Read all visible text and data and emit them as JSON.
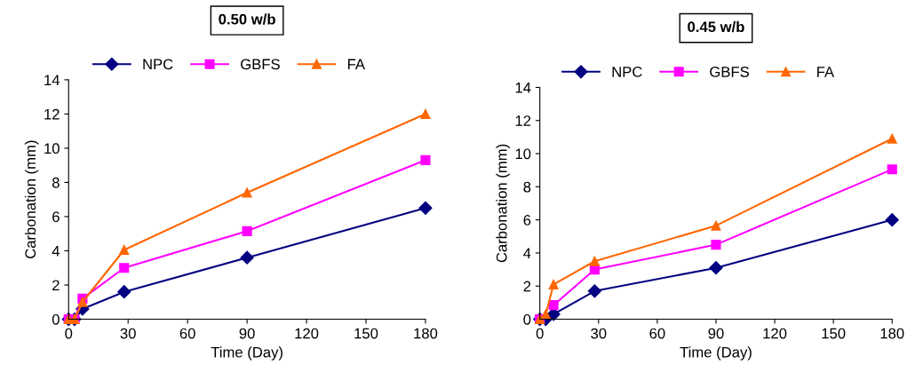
{
  "chart_data": [
    {
      "type": "line",
      "title": "0.50 w/b",
      "xlabel": "Time (Day)",
      "ylabel": "Carbonation (mm)",
      "x": [
        0,
        3,
        7,
        28,
        90,
        180
      ],
      "series": [
        {
          "name": "NPC",
          "color": "#000080",
          "marker": "diamond",
          "values": [
            0,
            0,
            0.6,
            1.6,
            3.6,
            6.5
          ]
        },
        {
          "name": "GBFS",
          "color": "#ff00ff",
          "marker": "square",
          "values": [
            0,
            0,
            1.2,
            3.0,
            5.15,
            9.3
          ]
        },
        {
          "name": "FA",
          "color": "#ff6600",
          "marker": "triangle",
          "values": [
            0,
            0,
            1.0,
            4.05,
            7.4,
            12.0
          ]
        }
      ],
      "xlim": [
        0,
        180
      ],
      "xticks": [
        0,
        30,
        60,
        90,
        120,
        150,
        180
      ],
      "ylim": [
        0,
        14
      ],
      "yticks": [
        0,
        2,
        4,
        6,
        8,
        10,
        12,
        14
      ],
      "legend": "top",
      "grid": false
    },
    {
      "type": "line",
      "title": "0.45 w/b",
      "xlabel": "Time (Day)",
      "ylabel": "Carbonation (mm)",
      "x": [
        0,
        3,
        7,
        28,
        90,
        180
      ],
      "series": [
        {
          "name": "NPC",
          "color": "#000080",
          "marker": "diamond",
          "values": [
            0,
            0,
            0.3,
            1.7,
            3.1,
            6.0
          ]
        },
        {
          "name": "GBFS",
          "color": "#ff00ff",
          "marker": "square",
          "values": [
            0,
            null,
            0.85,
            3.0,
            4.5,
            9.05
          ]
        },
        {
          "name": "FA",
          "color": "#ff6600",
          "marker": "triangle",
          "values": [
            0,
            0.3,
            2.1,
            3.5,
            5.65,
            10.9
          ]
        }
      ],
      "xlim": [
        0,
        180
      ],
      "xticks": [
        0,
        30,
        60,
        90,
        120,
        150,
        180
      ],
      "ylim": [
        0,
        14
      ],
      "yticks": [
        0,
        2,
        4,
        6,
        8,
        10,
        12,
        14
      ],
      "legend": "top",
      "grid": false
    }
  ]
}
